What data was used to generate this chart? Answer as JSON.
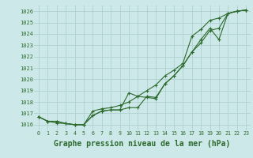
{
  "title": "Graphe pression niveau de la mer (hPa)",
  "bg_color": "#cce8e8",
  "grid_color": "#b0d0d0",
  "line_color": "#2d6a2d",
  "xlim": [
    -0.5,
    23.5
  ],
  "ylim": [
    1015.5,
    1026.5
  ],
  "yticks": [
    1016,
    1017,
    1018,
    1019,
    1020,
    1021,
    1022,
    1023,
    1024,
    1025,
    1026
  ],
  "xticks": [
    0,
    1,
    2,
    3,
    4,
    5,
    6,
    7,
    8,
    9,
    10,
    11,
    12,
    13,
    14,
    15,
    16,
    17,
    18,
    19,
    20,
    21,
    22,
    23
  ],
  "series1_x": [
    0,
    1,
    2,
    3,
    4,
    5,
    6,
    7,
    8,
    9,
    10,
    11,
    12,
    13,
    14,
    15,
    16,
    17,
    18,
    19,
    20,
    21,
    22,
    23
  ],
  "series1_y": [
    1016.7,
    1016.3,
    1016.3,
    1016.1,
    1016.0,
    1016.0,
    1016.8,
    1017.2,
    1017.3,
    1017.3,
    1018.8,
    1018.5,
    1018.4,
    1018.3,
    1019.6,
    1020.3,
    1021.2,
    1022.4,
    1023.2,
    1024.3,
    1024.5,
    1025.8,
    1026.0,
    1026.1
  ],
  "series2_x": [
    0,
    1,
    2,
    3,
    4,
    5,
    6,
    7,
    8,
    9,
    10,
    11,
    12,
    13,
    14,
    15,
    16,
    17,
    18,
    19,
    20,
    21,
    22,
    23
  ],
  "series2_y": [
    1016.7,
    1016.3,
    1016.3,
    1016.1,
    1016.0,
    1016.0,
    1017.2,
    1017.4,
    1017.5,
    1017.7,
    1018.0,
    1018.5,
    1019.0,
    1019.5,
    1020.3,
    1020.8,
    1021.4,
    1023.8,
    1024.4,
    1025.2,
    1025.4,
    1025.8,
    1026.0,
    1026.1
  ],
  "series3_x": [
    0,
    1,
    2,
    3,
    4,
    5,
    6,
    7,
    8,
    9,
    10,
    11,
    12,
    13,
    14,
    15,
    16,
    17,
    18,
    19,
    20,
    21,
    22,
    23
  ],
  "series3_y": [
    1016.7,
    1016.3,
    1016.15,
    1016.1,
    1016.0,
    1016.0,
    1016.8,
    1017.2,
    1017.3,
    1017.3,
    1017.5,
    1017.5,
    1018.5,
    1018.4,
    1019.6,
    1020.3,
    1021.2,
    1022.4,
    1023.5,
    1024.5,
    1023.5,
    1025.8,
    1026.0,
    1026.1
  ],
  "ylabel_fontsize": 5.5,
  "xlabel_fontsize": 5.0,
  "title_fontsize": 7.0
}
